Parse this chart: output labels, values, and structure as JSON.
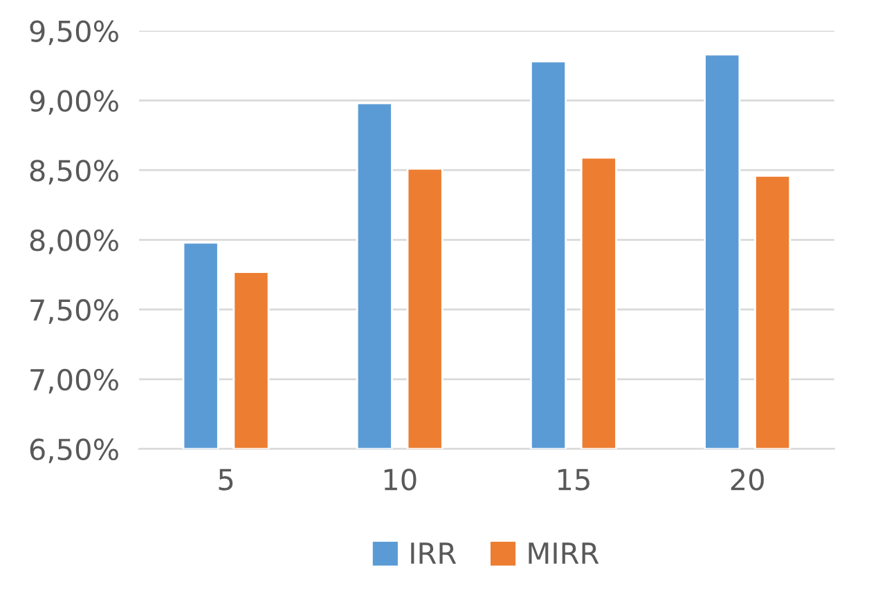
{
  "chart_data": {
    "type": "bar",
    "categories": [
      "5",
      "10",
      "15",
      "20"
    ],
    "series": [
      {
        "name": "IRR",
        "color": "#5b9bd5",
        "values": [
          7.98,
          8.98,
          9.28,
          9.33
        ]
      },
      {
        "name": "MIRR",
        "color": "#ed7d31",
        "values": [
          7.77,
          8.51,
          8.59,
          8.46
        ]
      }
    ],
    "ylim": [
      6.5,
      9.5
    ],
    "yticks": [
      {
        "value": 6.5,
        "label": "6,50%"
      },
      {
        "value": 7.0,
        "label": "7,00%"
      },
      {
        "value": 7.5,
        "label": "7,50%"
      },
      {
        "value": 8.0,
        "label": "8,00%"
      },
      {
        "value": 8.5,
        "label": "8,50%"
      },
      {
        "value": 9.0,
        "label": "9,00%"
      },
      {
        "value": 9.5,
        "label": "9,50%"
      }
    ],
    "grid": "y",
    "legend": "bottom"
  }
}
